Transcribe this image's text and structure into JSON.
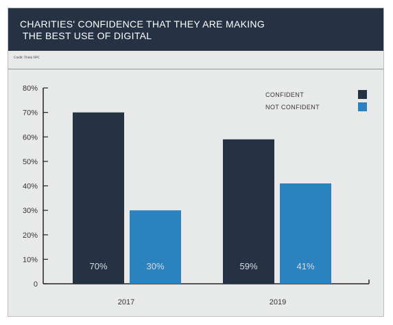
{
  "chart_data": {
    "type": "bar",
    "title": "CHARITIES' CONFIDENCE THAT THEY ARE MAKING\n THE BEST USE OF DIGITAL",
    "credit": "Credit: Think NPC",
    "categories": [
      "2017",
      "2019"
    ],
    "series": [
      {
        "name": "CONFIDENT",
        "values": [
          70,
          59
        ],
        "labels": [
          "70%",
          "59%"
        ],
        "color": "#253244"
      },
      {
        "name": "NOT CONFIDENT",
        "values": [
          30,
          41
        ],
        "labels": [
          "30%",
          "41%"
        ],
        "color": "#2b82be"
      }
    ],
    "y_ticks": [
      {
        "value": 0,
        "label": "0"
      },
      {
        "value": 10,
        "label": "10%"
      },
      {
        "value": 20,
        "label": "20%"
      },
      {
        "value": 30,
        "label": "30%"
      },
      {
        "value": 40,
        "label": "40%"
      },
      {
        "value": 50,
        "label": "50%"
      },
      {
        "value": 60,
        "label": "60%"
      },
      {
        "value": 70,
        "label": "70%"
      },
      {
        "value": 80,
        "label": "80%"
      }
    ],
    "ylim": [
      0,
      80
    ],
    "grid": false,
    "legend_position": "top-right"
  }
}
